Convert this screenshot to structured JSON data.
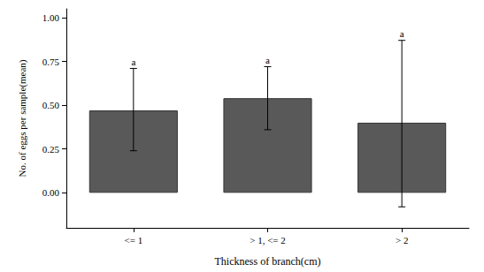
{
  "chart_data": {
    "type": "bar",
    "x_label": "Thickness of branch(cm)",
    "y_label": "No. of eggs per sample(mean)",
    "categories": [
      "<= 1",
      "> 1, <= 2",
      "> 2"
    ],
    "values": [
      0.47,
      0.54,
      0.4
    ],
    "error_low": [
      0.24,
      0.36,
      -0.08
    ],
    "error_high": [
      0.71,
      0.72,
      0.87
    ],
    "annotations": [
      "a",
      "a",
      "a"
    ],
    "color": "#595959",
    "ylim": [
      -0.2,
      1.05
    ],
    "yticks": [
      {
        "value": 0,
        "label": "0.00"
      },
      {
        "value": 0.25,
        "label": "0.25"
      },
      {
        "value": 0.5,
        "label": "0.50"
      },
      {
        "value": 0.75,
        "label": "0.75"
      },
      {
        "value": 1,
        "label": "1.00"
      }
    ],
    "grid": false
  }
}
